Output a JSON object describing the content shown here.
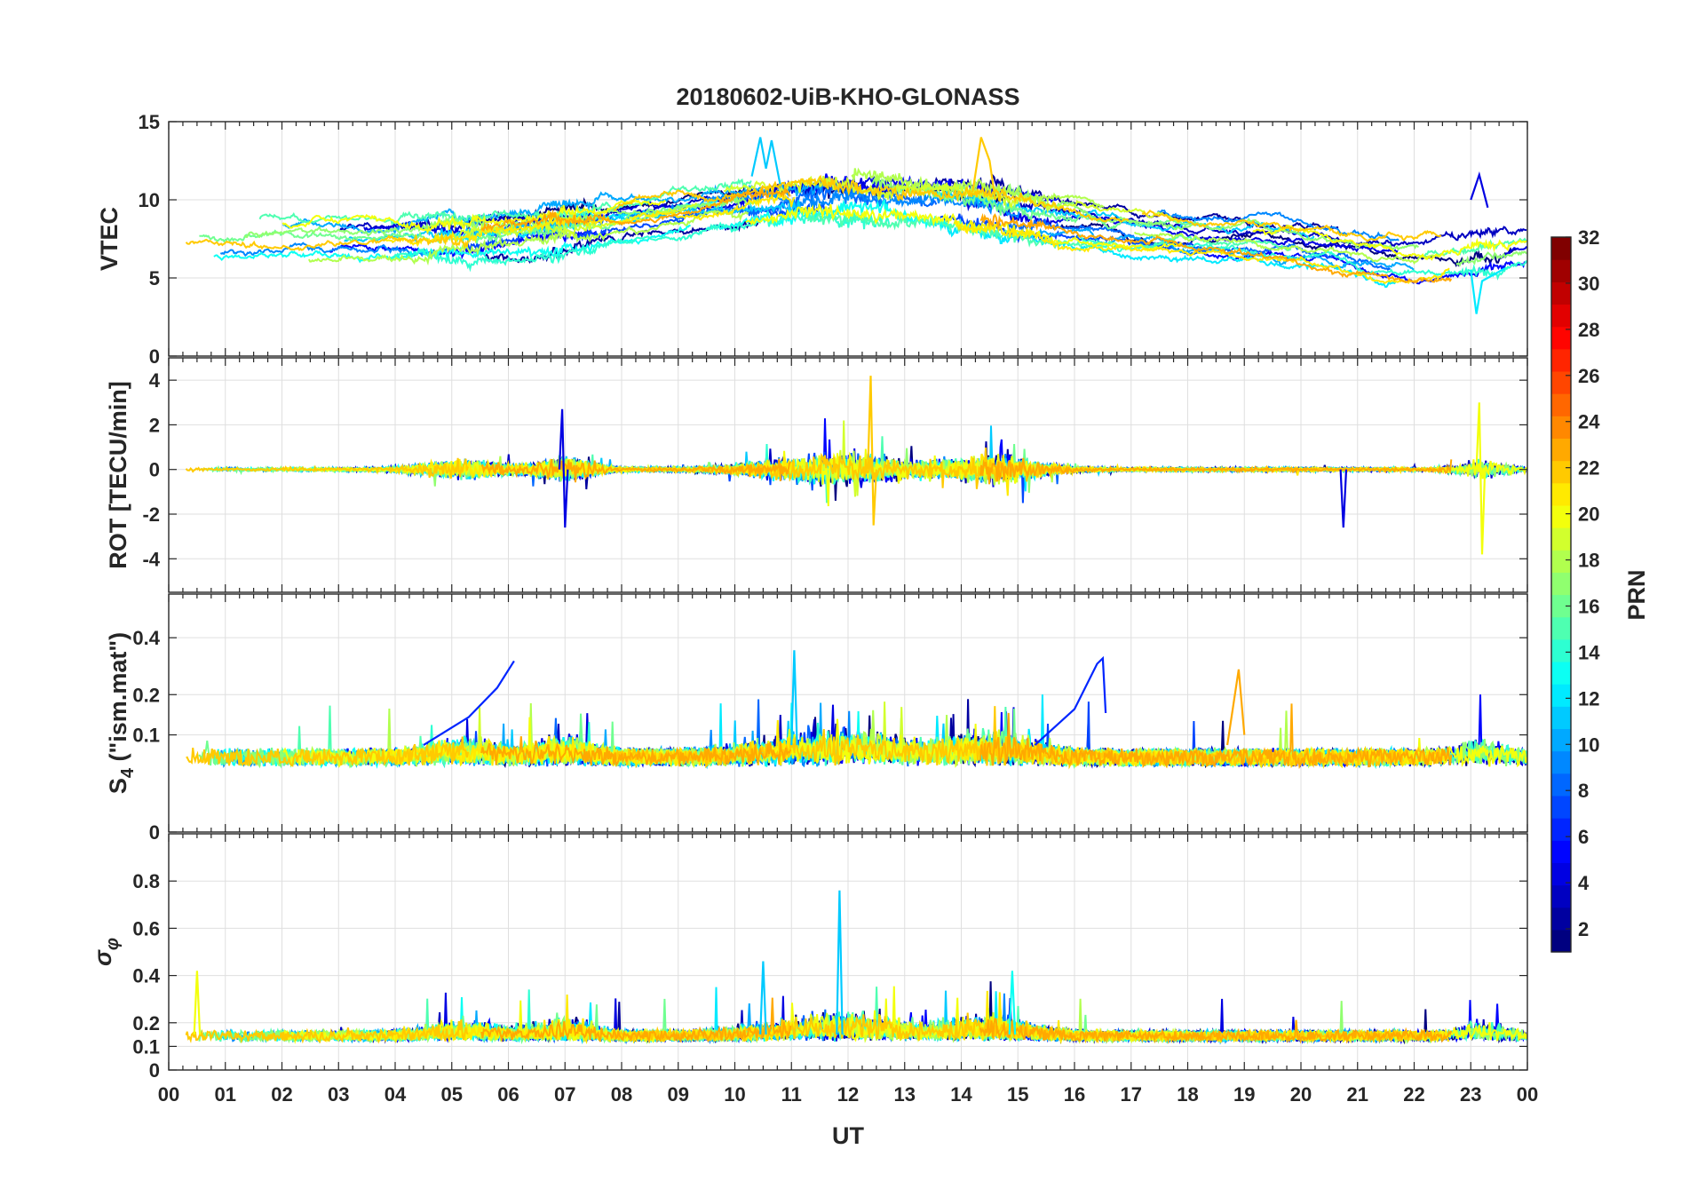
{
  "chart_data": {
    "type": "line",
    "title": "20180602-UiB-KHO-GLONASS",
    "xlabel": "UT",
    "x_range_hours": [
      0,
      24
    ],
    "x_tick_labels": [
      "00",
      "01",
      "02",
      "03",
      "04",
      "05",
      "06",
      "07",
      "08",
      "09",
      "10",
      "11",
      "12",
      "13",
      "14",
      "15",
      "16",
      "17",
      "18",
      "19",
      "20",
      "21",
      "22",
      "23",
      "00"
    ],
    "series_note": "Multiple PRN traces per panel, colored by PRN number (jet colormap)",
    "panels": [
      {
        "id": "vtec",
        "ylabel": "VTEC",
        "ylim": [
          0,
          15
        ],
        "y_ticks": [
          0,
          5,
          10,
          15
        ],
        "y_tick_labels": [
          "0",
          "5",
          "10",
          "15"
        ],
        "grid": true,
        "typical_values": "5-14 TECU, peak ~14 near 10.5 UT and 14.4 UT"
      },
      {
        "id": "rot",
        "ylabel": "ROT [TECU/min]",
        "ylim": [
          -5.5,
          5
        ],
        "y_ticks": [
          -4,
          -2,
          0,
          2,
          4
        ],
        "y_tick_labels": [
          "-4",
          "-2",
          "0",
          "2",
          "4"
        ],
        "grid": true,
        "typical_values": "mostly within ±1, spikes to ~4.2 near 12.4 UT and ~-3.8 near 23.2 UT"
      },
      {
        "id": "s4",
        "ylabel": "S4 (\"ism.mat\")",
        "ylabel_main": "S",
        "ylabel_sub": "4",
        "ylabel_rest": " (\"ism.mat\")",
        "ylim": [
          0,
          0.6
        ],
        "y_ticks": [
          0,
          0.1,
          0.2,
          0.4
        ],
        "y_tick_labels": [
          "0",
          "0.1",
          "0.2",
          "0.4"
        ],
        "y_scale": "sqrt",
        "grid": true,
        "typical_values": "0.03-0.1 baseline, peaks ~0.32 near 6 UT and 16.5 UT, ~0.35 near 11 UT"
      },
      {
        "id": "sigphi",
        "ylabel": "σφ",
        "ylabel_main": "σ",
        "ylabel_sub": "φ",
        "ylim": [
          0,
          1
        ],
        "y_ticks": [
          0,
          0.1,
          0.2,
          0.4,
          0.6,
          0.8
        ],
        "y_tick_labels": [
          "0",
          "0.1",
          "0.2",
          "0.4",
          "0.6",
          "0.8"
        ],
        "grid": true,
        "typical_values": "0.1-0.2 baseline, spike ~0.76 near 11.85 UT"
      }
    ],
    "colorbar": {
      "label": "PRN",
      "range": [
        1,
        32
      ],
      "tick_labels": [
        "2",
        "4",
        "6",
        "8",
        "10",
        "12",
        "14",
        "16",
        "18",
        "20",
        "22",
        "24",
        "26",
        "28",
        "30",
        "32"
      ],
      "colormap": "jet"
    },
    "series_colors": {
      "prn_1": "#00008f",
      "prn_4": "#0000ff",
      "prn_8": "#0060ff",
      "prn_11": "#00bfff",
      "prn_14": "#20dfbf",
      "prn_17": "#80ff80",
      "prn_20": "#ffff00",
      "prn_23": "#ffa000"
    }
  }
}
